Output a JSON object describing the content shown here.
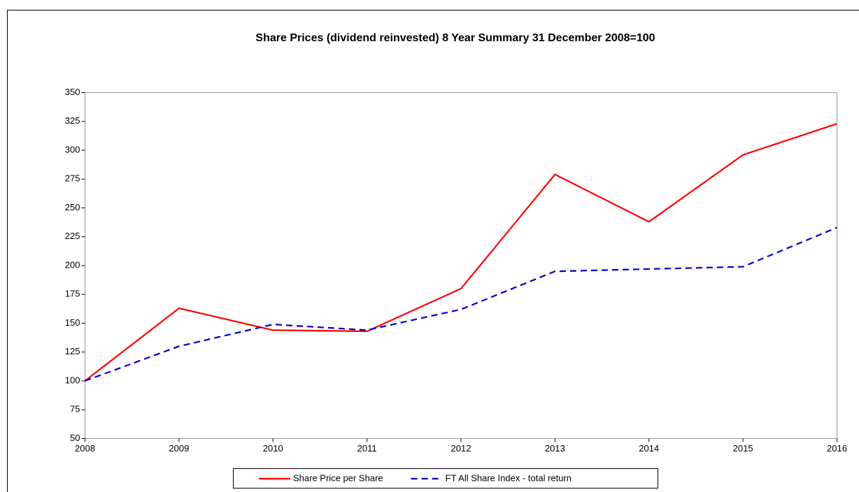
{
  "chart_data": {
    "type": "line",
    "title": "Share Prices (dividend reinvested) 8 Year Summary 31 December 2008=100",
    "x": [
      2008,
      2009,
      2010,
      2011,
      2012,
      2013,
      2014,
      2015,
      2016
    ],
    "xlim": [
      2008,
      2016
    ],
    "xticks": [
      2008,
      2009,
      2010,
      2011,
      2012,
      2013,
      2014,
      2015,
      2016
    ],
    "ylim": [
      50,
      350
    ],
    "yticks": [
      50,
      75,
      100,
      125,
      150,
      175,
      200,
      225,
      250,
      275,
      300,
      325,
      350
    ],
    "grid": false,
    "legend": "bottom",
    "series": [
      {
        "name": "Share Price per Share",
        "color": "#ff0000",
        "dash": "solid",
        "values": [
          100,
          163,
          144,
          143,
          180,
          279,
          238,
          296,
          323
        ]
      },
      {
        "name": "FT All Share Index - total return",
        "color": "#0000cc",
        "dash": "dashed",
        "values": [
          100,
          130,
          149,
          144,
          162,
          195,
          197,
          199,
          233
        ]
      }
    ]
  }
}
